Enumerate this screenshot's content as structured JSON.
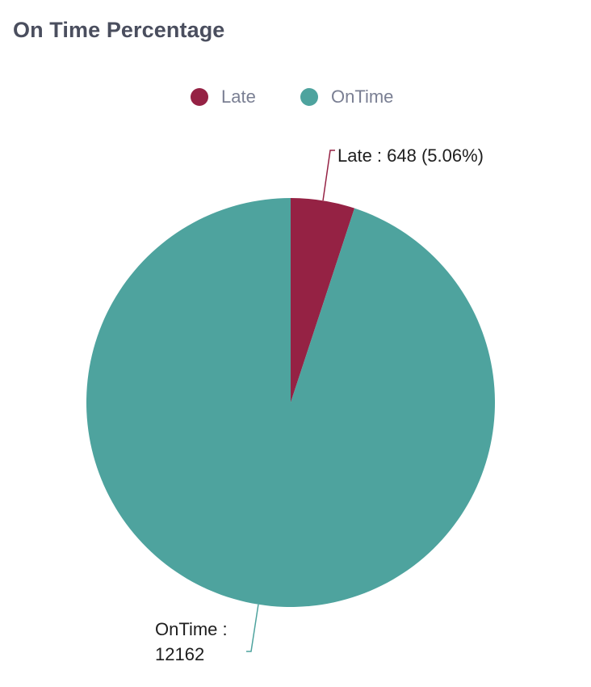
{
  "chart_data": {
    "type": "pie",
    "title": "On Time Percentage",
    "categories": [
      "Late",
      "OnTime"
    ],
    "values": [
      648,
      12162
    ],
    "colors": [
      "#952244",
      "#4ea39e"
    ],
    "legend_position": "top",
    "labels": [
      {
        "category": "Late",
        "text": "Late : 648 (5.06%)"
      },
      {
        "category": "OnTime",
        "line1": "OnTime :",
        "line2": "12162"
      }
    ]
  }
}
